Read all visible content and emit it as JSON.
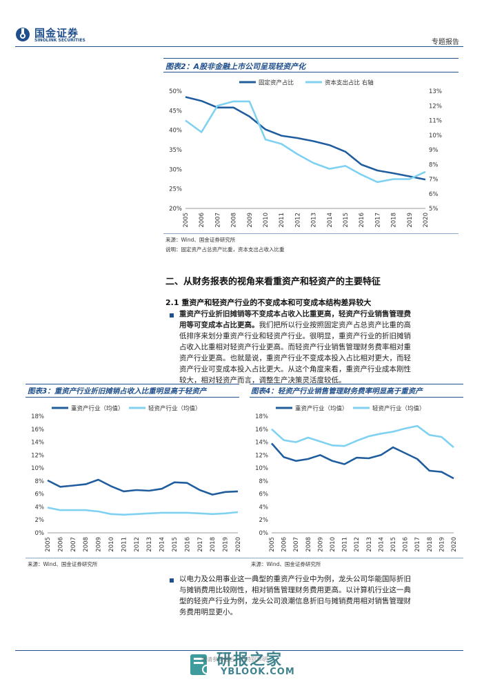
{
  "header": {
    "logo_cn": "国金证券",
    "logo_en": "SINOLINK SECURITIES",
    "report_type": "专题报告"
  },
  "fig2": {
    "title": "图表2：A股非金融上市公司呈现轻资产化",
    "source": "来源：Wind、国金证券研究所",
    "note": "说明：固定资产占总资产比重，资本支出占收入比重",
    "chart_data": {
      "type": "line",
      "x": [
        "2005",
        "2006",
        "2007",
        "2008",
        "2009",
        "2010",
        "2011",
        "2012",
        "2013",
        "2014",
        "2015",
        "2016",
        "2017",
        "2018",
        "2019",
        "2020"
      ],
      "series": [
        {
          "name": "固定资产占比",
          "axis": "left",
          "color": "#1f5d9e",
          "values": [
            48.5,
            47.5,
            45.8,
            45.8,
            43.5,
            40.2,
            38.6,
            38.0,
            37.2,
            36.2,
            34.5,
            31.2,
            29.7,
            29.0,
            28.2,
            27.4
          ]
        },
        {
          "name": "资本支出占比 右轴",
          "axis": "right",
          "color": "#7fd1f2",
          "values": [
            11.0,
            10.2,
            12.0,
            12.3,
            12.3,
            9.7,
            9.4,
            8.7,
            8.1,
            7.7,
            7.9,
            7.3,
            6.8,
            7.0,
            7.0,
            7.5
          ]
        }
      ],
      "y_left": {
        "ticks": [
          "20%",
          "25%",
          "30%",
          "35%",
          "40%",
          "45%",
          "50%"
        ],
        "range": [
          20,
          50
        ]
      },
      "y_right": {
        "ticks": [
          "5%",
          "6%",
          "7%",
          "8%",
          "9%",
          "10%",
          "11%",
          "12%",
          "13%"
        ],
        "range": [
          5,
          13
        ]
      },
      "legend_position": "top"
    }
  },
  "section2": {
    "heading": "二、从财务报表的视角来看重资产和轻资产的主要特征",
    "sub_heading": "2.1 重资产和轻资产行业的不变成本和可变成本结构差异较大",
    "bullet1_bold": "重资产行业折旧摊销等不变成本占收入比重更高，轻资产行业销售管理费用等可变成本占比更高。",
    "bullet1_lines": [
      "重资产行业折旧摊销等不变成本占收入比重更高，轻资产行业销售管理费",
      "用等可变成本占比更高。我们把所以行业按照固定资产占总资产比重的高",
      "低排序来划分重资产行业和轻资产行业。很明显，重资产行业的折旧摊销",
      "占收入比重相对轻资产行业更高。而轻资产行业销售管理财务费率相对重",
      "资产行业更高。也就是说，重资产行业不变成本投入占比相对更大，而轻",
      "资产行业可变成本投入占比更大。从这个角度来看，重资产行业成本刚性",
      "较大，相对轻资产而言，调整生产决策灵活度较低。"
    ]
  },
  "fig3": {
    "title": "图表3：重资产行业折旧摊销占收入比重明显高于轻资产",
    "source": "来源：Wind、国金证券研究所",
    "chart_data": {
      "type": "line",
      "x": [
        "2005",
        "2006",
        "2007",
        "2008",
        "2009",
        "2010",
        "2011",
        "2012",
        "2013",
        "2014",
        "2015",
        "2016",
        "2017",
        "2018",
        "2019",
        "2020"
      ],
      "series": [
        {
          "name": "重资产行业（均值）",
          "color": "#1f5d9e",
          "values": [
            8.1,
            7.1,
            7.3,
            7.5,
            8.2,
            7.2,
            6.4,
            6.6,
            6.5,
            6.8,
            7.8,
            7.7,
            6.6,
            5.9,
            6.3,
            6.4
          ]
        },
        {
          "name": "轻资产行业（均值）",
          "color": "#7fd1f2",
          "values": [
            3.9,
            3.5,
            3.5,
            3.5,
            3.3,
            2.9,
            2.8,
            2.9,
            3.0,
            3.1,
            3.1,
            3.1,
            3.0,
            2.9,
            3.0,
            3.2
          ]
        }
      ],
      "y": {
        "ticks": [
          "0%",
          "2%",
          "4%",
          "6%",
          "8%",
          "10%",
          "12%",
          "14%",
          "16%",
          "18%"
        ],
        "range": [
          0,
          18
        ]
      },
      "legend_position": "top"
    }
  },
  "fig4": {
    "title": "图表4：轻资产行业销售管理财务费率明显高于重资产",
    "source": "来源：Wind、国金证券研究所",
    "chart_data": {
      "type": "line",
      "x": [
        "2005",
        "2006",
        "2007",
        "2008",
        "2009",
        "2010",
        "2011",
        "2012",
        "2013",
        "2014",
        "2015",
        "2016",
        "2017",
        "2018",
        "2019",
        "2020"
      ],
      "series": [
        {
          "name": "重资产行业（均值）",
          "color": "#1f5d9e",
          "values": [
            13.8,
            11.7,
            11.1,
            11.4,
            12.0,
            11.1,
            10.6,
            11.6,
            11.5,
            12.0,
            13.2,
            12.3,
            11.4,
            9.6,
            9.4,
            8.4
          ]
        },
        {
          "name": "轻资产行业（均值）",
          "color": "#7fd1f2",
          "values": [
            16.0,
            14.3,
            14.0,
            14.7,
            14.1,
            13.5,
            13.4,
            14.2,
            14.9,
            15.3,
            15.6,
            16.1,
            16.5,
            15.1,
            14.8,
            13.2
          ]
        }
      ],
      "y": {
        "ticks": [
          "0%",
          "2%",
          "4%",
          "6%",
          "8%",
          "10%",
          "12%",
          "14%",
          "16%",
          "18%"
        ],
        "range": [
          0,
          18
        ]
      },
      "legend_position": "top"
    }
  },
  "bullet2": {
    "lines": [
      "以电力及公用事业这一典型的重资产行业中为例，龙头公司华能国际折旧",
      "与摊销费用比较刚性，相对销售管理财务费用更高。以计算机行业这一典",
      "型的轻资产行业为例，龙头公司浪潮信息折旧与摊销费用相对销售管理财",
      "务费用明显更小。"
    ]
  },
  "footer": {
    "watermark_cn": "研报之家",
    "watermark_url": "YBLOOK.COM",
    "disclaimer": "敬请参阅最后一页特别声明"
  },
  "colors": {
    "brand": "#1f4f8c",
    "dark_series": "#1f5d9e",
    "light_series": "#7fd1f2"
  }
}
